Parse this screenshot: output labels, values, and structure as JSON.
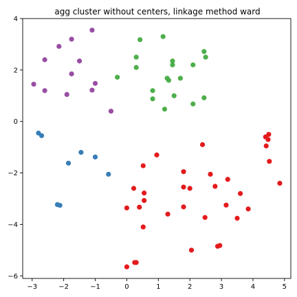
{
  "chart_data": {
    "type": "scatter",
    "title": "agg cluster without centers, linkage method ward",
    "xlabel": "",
    "ylabel": "",
    "xlim": [
      -3.3,
      5.2
    ],
    "ylim": [
      -6.1,
      4.0
    ],
    "x_ticks": [
      -3,
      -2,
      -1,
      0,
      1,
      2,
      3,
      4,
      5
    ],
    "y_ticks": [
      -6,
      -4,
      -2,
      0,
      2,
      4
    ],
    "grid": false,
    "legend": "none",
    "series": [
      {
        "color": "#984ea3",
        "points": [
          [
            -2.95,
            1.45
          ],
          [
            -2.6,
            2.4
          ],
          [
            -2.6,
            1.2
          ],
          [
            -2.15,
            2.92
          ],
          [
            -1.9,
            1.05
          ],
          [
            -1.75,
            3.2
          ],
          [
            -1.75,
            1.85
          ],
          [
            -1.5,
            2.35
          ],
          [
            -1.1,
            3.55
          ],
          [
            -1.1,
            1.22
          ],
          [
            -1.0,
            1.48
          ],
          [
            -0.5,
            0.4
          ]
        ]
      },
      {
        "color": "#4daf4a",
        "points": [
          [
            -0.3,
            1.72
          ],
          [
            0.3,
            2.5
          ],
          [
            0.3,
            2.1
          ],
          [
            0.42,
            3.18
          ],
          [
            0.82,
            1.2
          ],
          [
            0.82,
            0.88
          ],
          [
            1.15,
            3.3
          ],
          [
            1.2,
            0.48
          ],
          [
            1.28,
            1.68
          ],
          [
            1.33,
            1.6
          ],
          [
            1.45,
            2.35
          ],
          [
            1.45,
            2.2
          ],
          [
            1.5,
            1.0
          ],
          [
            1.7,
            1.68
          ],
          [
            2.1,
            2.2
          ],
          [
            2.1,
            0.68
          ],
          [
            2.45,
            2.72
          ],
          [
            2.45,
            0.92
          ],
          [
            2.5,
            2.5
          ]
        ]
      },
      {
        "color": "#377eb8",
        "points": [
          [
            -2.8,
            -0.45
          ],
          [
            -2.7,
            -0.55
          ],
          [
            -1.85,
            -1.62
          ],
          [
            -1.45,
            -1.2
          ],
          [
            -1.0,
            -1.38
          ],
          [
            -0.58,
            -2.05
          ],
          [
            -2.2,
            -3.23
          ],
          [
            -2.12,
            -3.26
          ]
        ]
      },
      {
        "color": "#e41a1c",
        "points": [
          [
            0.0,
            -3.36
          ],
          [
            0.0,
            -5.65
          ],
          [
            0.22,
            -2.6
          ],
          [
            0.25,
            -5.48
          ],
          [
            0.3,
            -5.48
          ],
          [
            0.4,
            -3.33
          ],
          [
            0.52,
            -1.72
          ],
          [
            0.52,
            -4.1
          ],
          [
            0.55,
            -2.78
          ],
          [
            0.55,
            -3.07
          ],
          [
            0.95,
            -1.3
          ],
          [
            1.3,
            -3.6
          ],
          [
            1.8,
            -1.95
          ],
          [
            1.8,
            -2.55
          ],
          [
            1.8,
            -3.32
          ],
          [
            2.0,
            -2.6
          ],
          [
            2.05,
            -5.0
          ],
          [
            2.4,
            -0.9
          ],
          [
            2.48,
            -3.73
          ],
          [
            2.65,
            -2.05
          ],
          [
            2.8,
            -2.52
          ],
          [
            2.88,
            -4.85
          ],
          [
            2.95,
            -4.82
          ],
          [
            3.15,
            -3.25
          ],
          [
            3.2,
            -2.25
          ],
          [
            3.5,
            -3.76
          ],
          [
            3.6,
            -2.8
          ],
          [
            3.85,
            -3.4
          ],
          [
            4.4,
            -0.6
          ],
          [
            4.42,
            -0.95
          ],
          [
            4.48,
            -0.7
          ],
          [
            4.5,
            -0.5
          ],
          [
            4.52,
            -1.55
          ],
          [
            4.85,
            -2.4
          ]
        ]
      }
    ]
  }
}
